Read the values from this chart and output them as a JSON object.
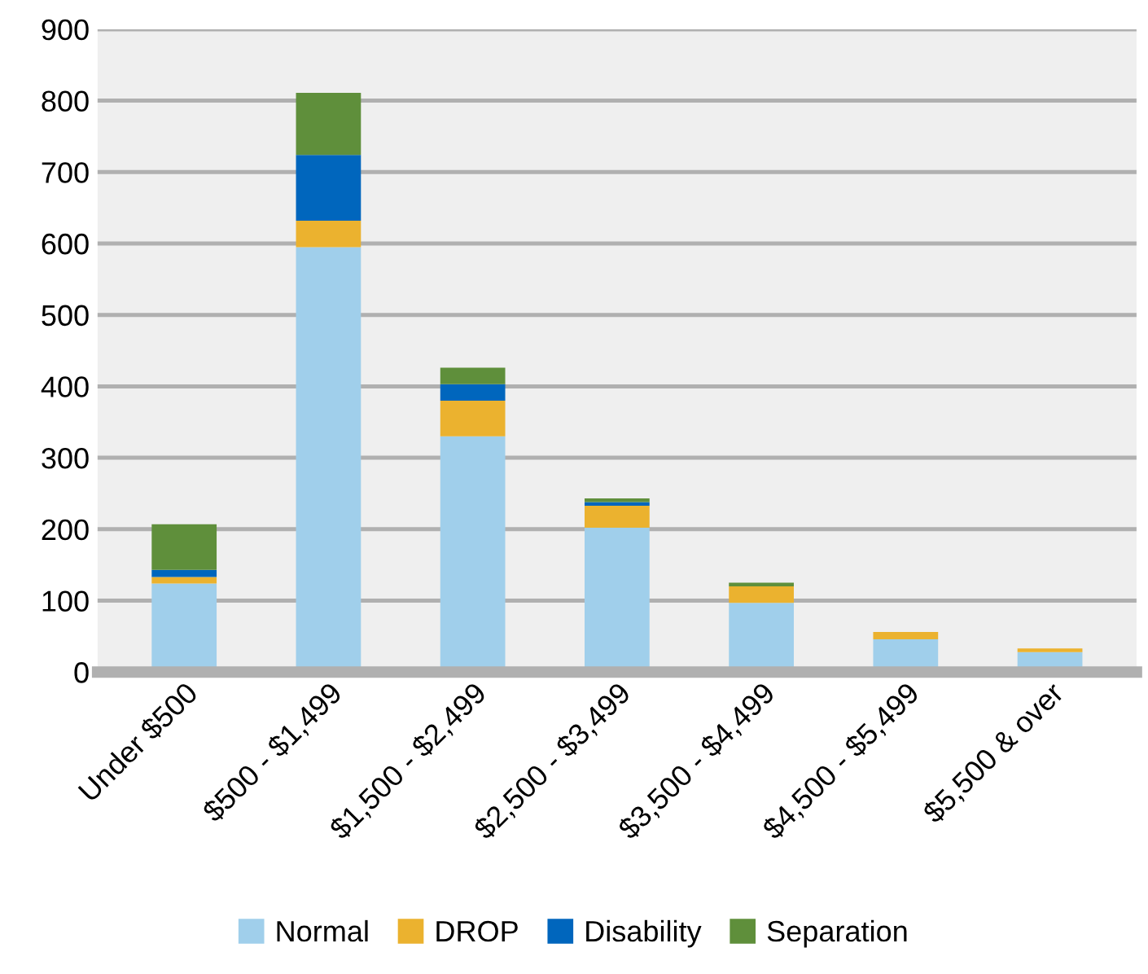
{
  "chart_data": {
    "type": "bar",
    "stacked": true,
    "categories": [
      "Under $500",
      "$500 - $1,499",
      "$1,500 - $2,499",
      "$2,500 - $3,499",
      "$3,500 - $4,499",
      "$4,500 - $5,499",
      "$5,500 & over"
    ],
    "series": [
      {
        "name": "Normal",
        "color": "#a0cfeb",
        "values": [
          124,
          595,
          330,
          202,
          97,
          46,
          28
        ]
      },
      {
        "name": "DROP",
        "color": "#ebb22f",
        "values": [
          9,
          37,
          50,
          31,
          23,
          10,
          5
        ]
      },
      {
        "name": "Disability",
        "color": "#0066bd",
        "values": [
          10,
          92,
          23,
          5,
          0,
          0,
          0
        ]
      },
      {
        "name": "Separation",
        "color": "#5f8f3b",
        "values": [
          64,
          87,
          23,
          5,
          5,
          0,
          0
        ]
      }
    ],
    "ylim": [
      0,
      900
    ],
    "yticks": [
      0,
      100,
      200,
      300,
      400,
      500,
      600,
      700,
      800,
      900
    ],
    "grid": "y",
    "legend": "bottom"
  }
}
